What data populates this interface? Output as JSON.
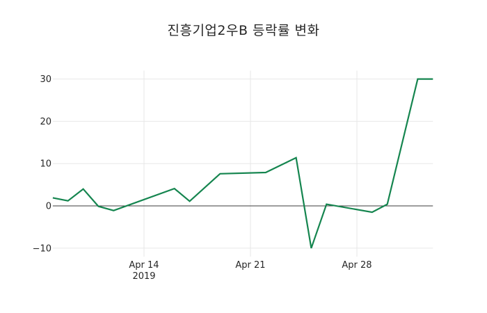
{
  "title": "진흥기업2우B 등락률 변화",
  "chart_data": {
    "type": "line",
    "title": "진흥기업2우B 등락률 변화",
    "xlabel": "",
    "ylabel": "",
    "grid": true,
    "legend": false,
    "zero_line": true,
    "ylim": [
      -12,
      32
    ],
    "series": [
      {
        "name": "진흥기업2우B 등락률",
        "x": [
          "2019-04-08",
          "2019-04-09",
          "2019-04-10",
          "2019-04-11",
          "2019-04-12",
          "2019-04-16",
          "2019-04-17",
          "2019-04-19",
          "2019-04-22",
          "2019-04-24",
          "2019-04-25",
          "2019-04-26",
          "2019-04-29",
          "2019-04-30",
          "2019-05-02",
          "2019-05-03"
        ],
        "values": [
          1.9,
          1.2,
          4.0,
          -0.1,
          -1.1,
          4.1,
          1.1,
          7.6,
          7.9,
          11.4,
          -10.0,
          0.4,
          -1.5,
          0.4,
          30.0,
          30.0
        ]
      }
    ],
    "y_ticks": [
      {
        "value": 30,
        "label": "30"
      },
      {
        "value": 20,
        "label": "20"
      },
      {
        "value": 10,
        "label": "10"
      },
      {
        "value": 0,
        "label": "0"
      },
      {
        "value": -10,
        "label": "−10"
      }
    ],
    "x_ticks": [
      {
        "date": "2019-04-14",
        "label": "Apr 14",
        "sublabel": "2019"
      },
      {
        "date": "2019-04-21",
        "label": "Apr 21"
      },
      {
        "date": "2019-04-28",
        "label": "Apr 28"
      }
    ],
    "colors": {
      "line": "#15854f",
      "grid": "#e7e7e7",
      "zero_line": "#3b3b3b",
      "text": "#262626",
      "background": "#ffffff"
    }
  }
}
